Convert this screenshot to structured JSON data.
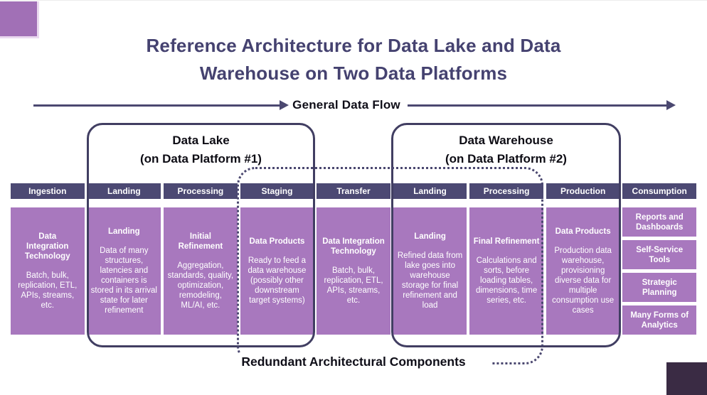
{
  "title": {
    "line1": "Reference Architecture for Data Lake and Data",
    "line2": "Warehouse on Two Data Platforms"
  },
  "flow": {
    "label": "General Data Flow"
  },
  "groups": {
    "lake": {
      "title": "Data Lake",
      "subtitle": "(on Data Platform #1)"
    },
    "warehouse": {
      "title": "Data Warehouse",
      "subtitle": "(on Data Platform #2)"
    }
  },
  "redundant": {
    "label": "Redundant Architectural Components"
  },
  "columns": [
    {
      "header": "Ingestion",
      "title": "Data Integration Technology",
      "body": "Batch, bulk, replication, ETL, APIs, streams, etc."
    },
    {
      "header": "Landing",
      "title": "Landing",
      "body": "Data of many structures, latencies and containers is stored in its arrival state for later refinement"
    },
    {
      "header": "Processing",
      "title": "Initial Refinement",
      "body": "Aggregation, standards, quality, optimization, remodeling, ML/AI, etc."
    },
    {
      "header": "Staging",
      "title": "Data Products",
      "body": "Ready to feed a data warehouse (possibly other downstream target systems)"
    },
    {
      "header": "Transfer",
      "title": "Data Integration Technology",
      "body": "Batch, bulk, replication, ETL, APIs, streams, etc."
    },
    {
      "header": "Landing",
      "title": "Landing",
      "body": "Refined data from lake goes into warehouse storage for final refinement and load"
    },
    {
      "header": "Processing",
      "title": "Final Refinement",
      "body": "Calculations and sorts, before loading tables, dimensions, time series, etc."
    },
    {
      "header": "Production",
      "title": "Data Products",
      "body": "Production data warehouse, provisioning diverse data for multiple consumption use cases"
    },
    {
      "header": "Consumption",
      "boxes": [
        "Reports and Dashboards",
        "Self-Service Tools",
        "Strategic Planning",
        "Many Forms of Analytics"
      ]
    }
  ],
  "colors": {
    "accent_purple": "#a878be",
    "header_indigo": "#4c4973",
    "title_purple": "#454270",
    "line_indigo": "#4b4870",
    "corner_light": "#a170b6",
    "corner_dark": "#3a2b44"
  }
}
